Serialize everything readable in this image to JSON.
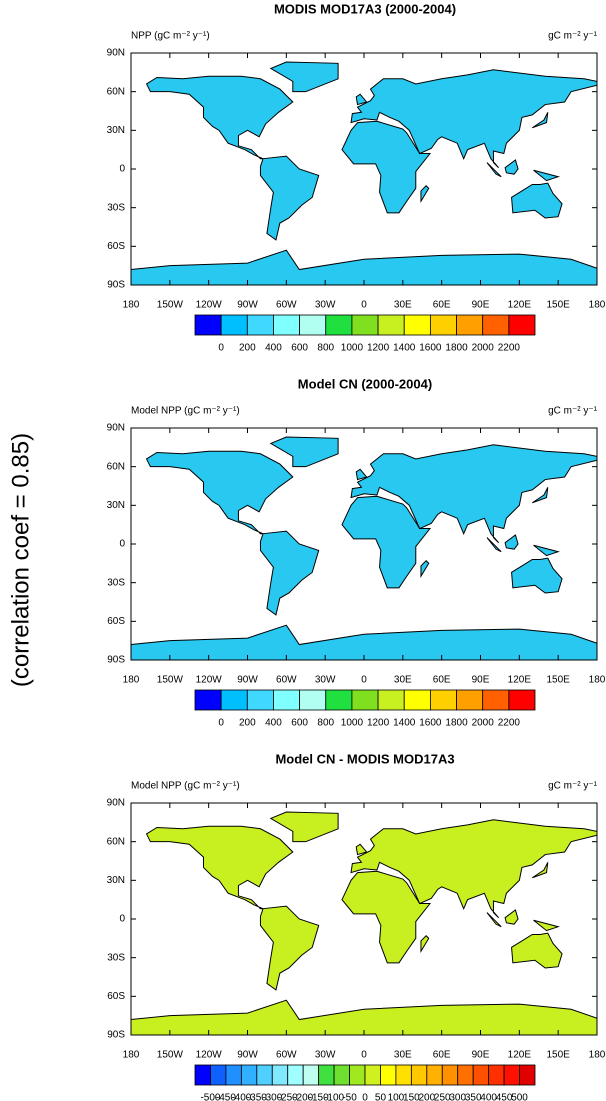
{
  "side_text": "(correlation coef =  0.85)",
  "panels": [
    {
      "title": "MODIS MOD17A3 (2000-2004)",
      "left_label": "NPP (gC m⁻² y⁻¹)",
      "right_label": "gC m⁻² y⁻¹",
      "lat_labels": [
        "90N",
        "60N",
        "30N",
        "0",
        "30S",
        "60S",
        "90S"
      ],
      "lon_labels": [
        "180",
        "150W",
        "120W",
        "90W",
        "60W",
        "30W",
        "0",
        "30E",
        "60E",
        "90E",
        "120E",
        "150E",
        "180"
      ],
      "colorbar": {
        "levels": [
          0,
          200,
          400,
          600,
          800,
          1000,
          1200,
          1400,
          1600,
          1800,
          2000,
          2200
        ],
        "colors": [
          "#0000ff",
          "#00bfff",
          "#40d8ff",
          "#80ffff",
          "#b0fff0",
          "#20e040",
          "#80e020",
          "#c8f020",
          "#ffff00",
          "#ffd000",
          "#ffa000",
          "#ff6000",
          "#ff0000"
        ]
      }
    },
    {
      "title": "Model CN (2000-2004)",
      "left_label": "Model NPP (gC m⁻² y⁻¹)",
      "right_label": "gC m⁻² y⁻¹",
      "lat_labels": [
        "90N",
        "60N",
        "30N",
        "0",
        "30S",
        "60S",
        "90S"
      ],
      "lon_labels": [
        "180",
        "150W",
        "120W",
        "90W",
        "60W",
        "30W",
        "0",
        "30E",
        "60E",
        "90E",
        "120E",
        "150E",
        "180"
      ],
      "colorbar": {
        "levels": [
          0,
          200,
          400,
          600,
          800,
          1000,
          1200,
          1400,
          1600,
          1800,
          2000,
          2200
        ],
        "colors": [
          "#0000ff",
          "#00bfff",
          "#40d8ff",
          "#80ffff",
          "#b0fff0",
          "#20e040",
          "#80e020",
          "#c8f020",
          "#ffff00",
          "#ffd000",
          "#ffa000",
          "#ff6000",
          "#ff0000"
        ]
      }
    },
    {
      "title": "Model CN - MODIS MOD17A3",
      "left_label": "Model NPP (gC m⁻² y⁻¹)",
      "right_label": "gC m⁻² y⁻¹",
      "lat_labels": [
        "90N",
        "60N",
        "30N",
        "0",
        "30S",
        "60S",
        "90S"
      ],
      "lon_labels": [
        "180",
        "150W",
        "120W",
        "90W",
        "60W",
        "30W",
        "0",
        "30E",
        "60E",
        "90E",
        "120E",
        "150E",
        "180"
      ],
      "colorbar": {
        "levels": [
          -500,
          -450,
          -400,
          -350,
          -300,
          -250,
          -200,
          -150,
          -100,
          -50,
          0,
          50,
          100,
          150,
          200,
          250,
          300,
          350,
          400,
          450,
          500
        ],
        "colors": [
          "#0000ff",
          "#1060ff",
          "#2090ff",
          "#30b0ff",
          "#50d0ff",
          "#80e8ff",
          "#a0ffff",
          "#c0fff0",
          "#40e040",
          "#70e030",
          "#a0e820",
          "#d0f020",
          "#ffff00",
          "#ffe000",
          "#ffc800",
          "#ffb000",
          "#ff9000",
          "#ff7000",
          "#ff5000",
          "#ff3000",
          "#ff1000",
          "#e00000"
        ]
      }
    }
  ]
}
